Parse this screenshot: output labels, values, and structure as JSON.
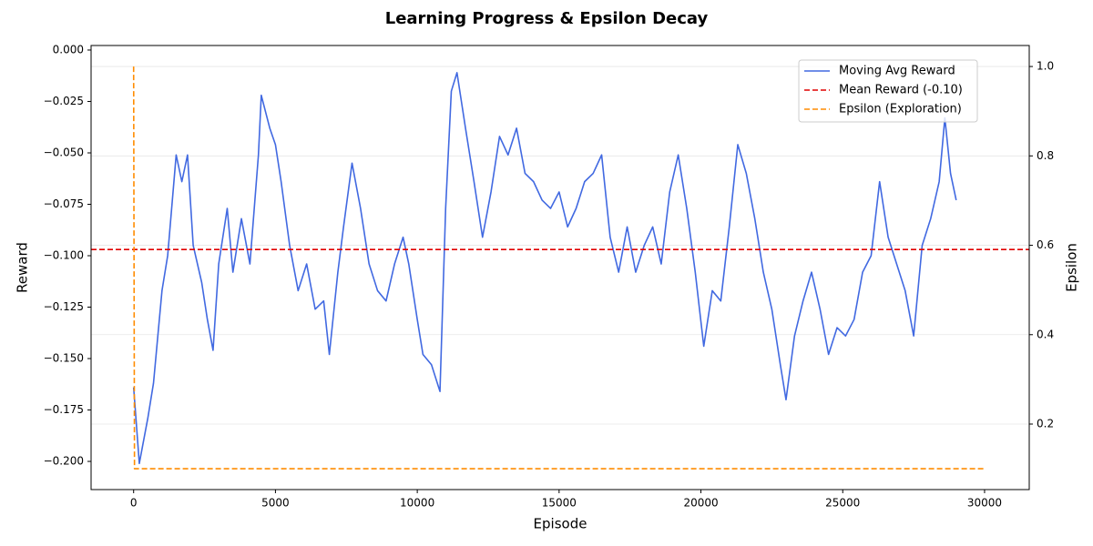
{
  "chart_data": {
    "type": "line",
    "title": "Learning Progress & Epsilon Decay",
    "xlabel": "Episode",
    "ylabel": "Reward",
    "y2label": "Epsilon",
    "xlim": [
      -1500,
      31575
    ],
    "ylim": [
      -0.2137,
      0.0022
    ],
    "y2lim": [
      0.0534,
      1.047
    ],
    "xticks": [
      0,
      5000,
      10000,
      15000,
      20000,
      25000,
      30000
    ],
    "yticks": [
      {
        "value": 0,
        "label": "0.000"
      },
      {
        "value": -0.025,
        "label": "−0.025"
      },
      {
        "value": -0.05,
        "label": "−0.050"
      },
      {
        "value": -0.075,
        "label": "−0.075"
      },
      {
        "value": -0.1,
        "label": "−0.100"
      },
      {
        "value": -0.125,
        "label": "−0.125"
      },
      {
        "value": -0.15,
        "label": "−0.150"
      },
      {
        "value": -0.175,
        "label": "−0.175"
      },
      {
        "value": -0.2,
        "label": "−0.200"
      }
    ],
    "y2ticks": [
      0.2,
      0.4,
      0.6,
      0.8,
      {
        "value": 1.0,
        "label": "1.0"
      }
    ],
    "grid": "y2",
    "legend": "upper right",
    "series": [
      {
        "name": "Moving Avg Reward",
        "color": "#4169e1",
        "style": "solid",
        "x": [
          0,
          200,
          500,
          700,
          1000,
          1200,
          1500,
          1700,
          1900,
          2100,
          2400,
          2600,
          2800,
          3000,
          3300,
          3500,
          3800,
          4100,
          4400,
          4500,
          4800,
          5000,
          5200,
          5500,
          5800,
          6100,
          6400,
          6700,
          6900,
          7200,
          7400,
          7700,
          8000,
          8300,
          8600,
          8900,
          9200,
          9500,
          9700,
          10000,
          10200,
          10500,
          10800,
          11000,
          11200,
          11400,
          11700,
          12000,
          12300,
          12600,
          12900,
          13200,
          13500,
          13800,
          14100,
          14400,
          14700,
          15000,
          15300,
          15600,
          15900,
          16200,
          16500,
          16800,
          17100,
          17400,
          17700,
          18000,
          18300,
          18600,
          18900,
          19200,
          19500,
          19800,
          20100,
          20400,
          20700,
          21000,
          21300,
          21600,
          21900,
          22200,
          22500,
          22800,
          23000,
          23300,
          23600,
          23900,
          24200,
          24500,
          24800,
          25100,
          25400,
          25700,
          26000,
          26300,
          26600,
          26900,
          27200,
          27500,
          27800,
          28100,
          28400,
          28600,
          28800,
          29000
        ],
        "values": [
          -0.164,
          -0.201,
          -0.179,
          -0.162,
          -0.117,
          -0.1,
          -0.051,
          -0.064,
          -0.051,
          -0.095,
          -0.113,
          -0.131,
          -0.146,
          -0.104,
          -0.077,
          -0.108,
          -0.082,
          -0.104,
          -0.051,
          -0.022,
          -0.038,
          -0.046,
          -0.064,
          -0.095,
          -0.117,
          -0.104,
          -0.126,
          -0.122,
          -0.148,
          -0.108,
          -0.086,
          -0.055,
          -0.077,
          -0.104,
          -0.117,
          -0.122,
          -0.104,
          -0.091,
          -0.104,
          -0.131,
          -0.148,
          -0.153,
          -0.166,
          -0.077,
          -0.02,
          -0.011,
          -0.038,
          -0.064,
          -0.091,
          -0.069,
          -0.042,
          -0.051,
          -0.038,
          -0.06,
          -0.064,
          -0.073,
          -0.077,
          -0.069,
          -0.086,
          -0.077,
          -0.064,
          -0.06,
          -0.051,
          -0.091,
          -0.108,
          -0.086,
          -0.108,
          -0.095,
          -0.086,
          -0.104,
          -0.069,
          -0.051,
          -0.077,
          -0.108,
          -0.144,
          -0.117,
          -0.122,
          -0.086,
          -0.046,
          -0.06,
          -0.082,
          -0.108,
          -0.126,
          -0.153,
          -0.17,
          -0.139,
          -0.122,
          -0.108,
          -0.126,
          -0.148,
          -0.135,
          -0.139,
          -0.131,
          -0.108,
          -0.1,
          -0.064,
          -0.091,
          -0.104,
          -0.117,
          -0.139,
          -0.095,
          -0.082,
          -0.064,
          -0.033,
          -0.06,
          -0.073
        ]
      },
      {
        "name": "Mean Reward (-0.10)",
        "color": "#e00000",
        "style": "dashed",
        "hline": -0.097
      },
      {
        "name": "Epsilon (Exploration)",
        "color": "#ff8c00",
        "style": "dashed",
        "axis": "y2",
        "x": [
          0,
          30,
          30000
        ],
        "values": [
          1.0,
          0.1,
          0.1
        ]
      }
    ]
  }
}
